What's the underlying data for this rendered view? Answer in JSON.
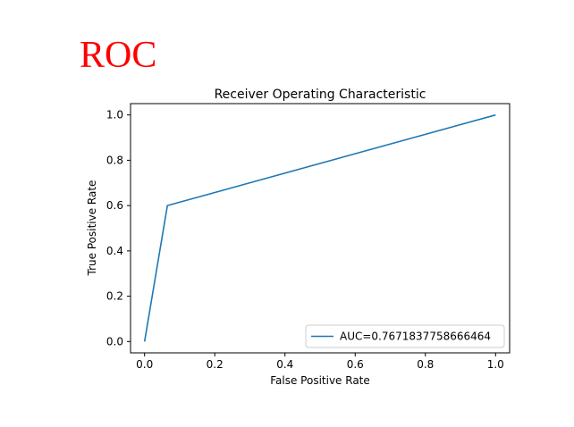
{
  "heading": {
    "text": "ROC",
    "color": "#ff0000"
  },
  "chart_data": {
    "type": "line",
    "title": "Receiver Operating Characteristic",
    "xlabel": "False Positive Rate",
    "ylabel": "True Positive Rate",
    "xlim": [
      -0.04,
      1.04
    ],
    "ylim": [
      -0.05,
      1.05
    ],
    "xticks": [
      "0.0",
      "0.2",
      "0.4",
      "0.6",
      "0.8",
      "1.0"
    ],
    "yticks": [
      "0.0",
      "0.2",
      "0.4",
      "0.6",
      "0.8",
      "1.0"
    ],
    "grid": false,
    "legend_position": "lower right",
    "series": [
      {
        "name": "AUC=0.7671837758666464",
        "color": "#1f77b4",
        "x": [
          0.0,
          0.065,
          1.0
        ],
        "y": [
          0.0,
          0.6,
          1.0
        ]
      }
    ]
  }
}
